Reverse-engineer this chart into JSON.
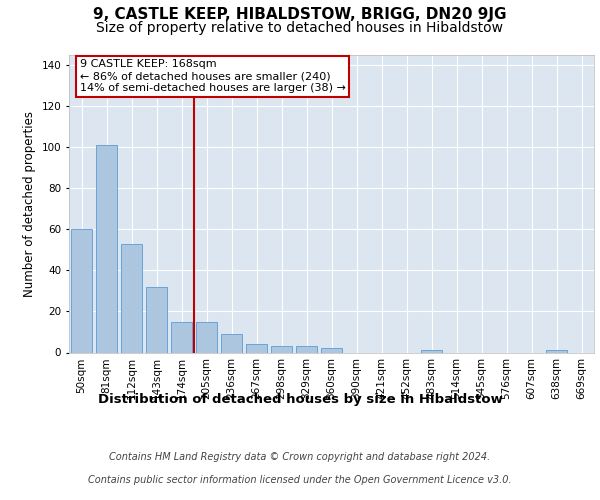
{
  "title": "9, CASTLE KEEP, HIBALDSTOW, BRIGG, DN20 9JG",
  "subtitle": "Size of property relative to detached houses in Hibaldstow",
  "xlabel": "Distribution of detached houses by size in Hibaldstow",
  "ylabel": "Number of detached properties",
  "categories": [
    "50sqm",
    "81sqm",
    "112sqm",
    "143sqm",
    "174sqm",
    "205sqm",
    "236sqm",
    "267sqm",
    "298sqm",
    "329sqm",
    "360sqm",
    "390sqm",
    "421sqm",
    "452sqm",
    "483sqm",
    "514sqm",
    "545sqm",
    "576sqm",
    "607sqm",
    "638sqm",
    "669sqm"
  ],
  "values": [
    60,
    101,
    53,
    32,
    15,
    15,
    9,
    4,
    3,
    3,
    2,
    0,
    0,
    0,
    1,
    0,
    0,
    0,
    0,
    1,
    0
  ],
  "bar_color": "#adc6e0",
  "bar_edge_color": "#5b9bd5",
  "vline_x_index": 4,
  "vline_color": "#c00000",
  "annotation_text": "9 CASTLE KEEP: 168sqm\n← 86% of detached houses are smaller (240)\n14% of semi-detached houses are larger (38) →",
  "annotation_box_color": "#ffffff",
  "annotation_box_edge": "#c00000",
  "ylim": [
    0,
    145
  ],
  "yticks": [
    0,
    20,
    40,
    60,
    80,
    100,
    120,
    140
  ],
  "footer_line1": "Contains HM Land Registry data © Crown copyright and database right 2024.",
  "footer_line2": "Contains public sector information licensed under the Open Government Licence v3.0.",
  "plot_bg_color": "#dce6f1",
  "title_fontsize": 11,
  "subtitle_fontsize": 10,
  "xlabel_fontsize": 9.5,
  "ylabel_fontsize": 8.5,
  "tick_fontsize": 7.5,
  "footer_fontsize": 7,
  "annotation_fontsize": 8
}
